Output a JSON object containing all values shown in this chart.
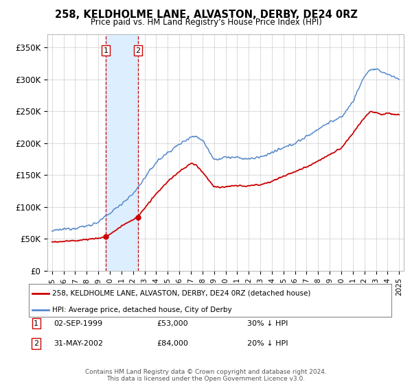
{
  "title": "258, KELDHOLME LANE, ALVASTON, DERBY, DE24 0RZ",
  "subtitle": "Price paid vs. HM Land Registry's House Price Index (HPI)",
  "property_label": "258, KELDHOLME LANE, ALVASTON, DERBY, DE24 0RZ (detached house)",
  "hpi_label": "HPI: Average price, detached house, City of Derby",
  "transaction1_date": "02-SEP-1999",
  "transaction1_price": "£53,000",
  "transaction1_hpi": "30% ↓ HPI",
  "transaction1_x": 1999.67,
  "transaction1_y": 53000,
  "transaction2_date": "31-MAY-2002",
  "transaction2_price": "£84,000",
  "transaction2_hpi": "20% ↓ HPI",
  "transaction2_x": 2002.42,
  "transaction2_y": 84000,
  "footer": "Contains HM Land Registry data © Crown copyright and database right 2024.\nThis data is licensed under the Open Government Licence v3.0.",
  "property_color": "#cc0000",
  "hpi_color": "#5588cc",
  "highlight_color": "#ddeeff",
  "ylim": [
    0,
    370000
  ],
  "xlim_start": 1994.6,
  "xlim_end": 2025.4,
  "yticks": [
    0,
    50000,
    100000,
    150000,
    200000,
    250000,
    300000,
    350000
  ],
  "ytick_labels": [
    "£0",
    "£50K",
    "£100K",
    "£150K",
    "£200K",
    "£250K",
    "£300K",
    "£350K"
  ]
}
